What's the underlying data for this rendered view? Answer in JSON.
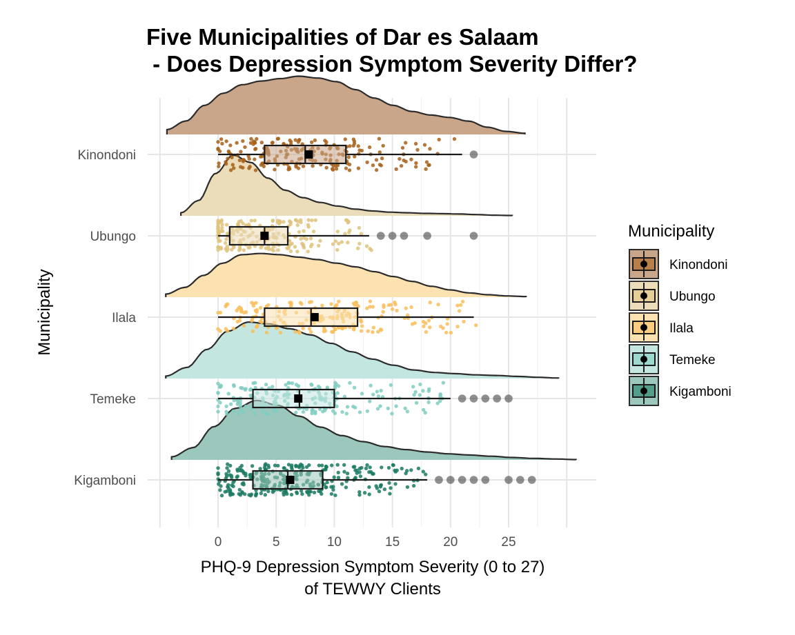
{
  "chart_data": {
    "type": "raincloud",
    "title_line1": "Five Municipalities of Dar es Salaam",
    "title_line2": " - Does Depression Symptom Severity Differ?",
    "xlabel_line1": "PHQ-9 Depression Symptom Severity (0 to 27)",
    "xlabel_line2": "of TEWWY Clients",
    "ylabel": "Municipality",
    "xlim": [
      -5,
      30
    ],
    "x_ticks": [
      0,
      5,
      10,
      15,
      20,
      25
    ],
    "x_tick_labels": [
      "0",
      "5",
      "10",
      "15",
      "20",
      "25"
    ],
    "grid": true,
    "legend": {
      "title": "Municipality",
      "position": "right"
    },
    "categories": [
      "Kinondoni",
      "Ubungo",
      "Ilala",
      "Temeke",
      "Kigamboni"
    ],
    "series": [
      {
        "name": "Kinondoni",
        "color": "#A6611A",
        "fill": "#C9A58A",
        "box": {
          "q1": 4,
          "median": 7.5,
          "q3": 11,
          "whisker_low": 0,
          "whisker_high": 21,
          "mean": 7.8
        },
        "outliers": [
          22
        ],
        "density_range": [
          -4.4,
          26.4
        ],
        "density": [
          0.08,
          0.22,
          0.48,
          0.68,
          0.82,
          0.88,
          0.92,
          0.96,
          0.93,
          0.87,
          0.74,
          0.6,
          0.48,
          0.38,
          0.32,
          0.28,
          0.22,
          0.12,
          0.05,
          0.02
        ],
        "n_points": 210
      },
      {
        "name": "Ubungo",
        "color": "#DFC27D",
        "fill": "#EBDDB9",
        "box": {
          "q1": 1,
          "median": 4,
          "q3": 6,
          "whisker_low": 0,
          "whisker_high": 13,
          "mean": 4
        },
        "outliers": [
          14,
          15,
          16,
          18,
          22
        ],
        "density_range": [
          -3.2,
          25.3
        ],
        "density": [
          0.05,
          0.25,
          0.7,
          1.0,
          0.88,
          0.62,
          0.42,
          0.3,
          0.22,
          0.16,
          0.11,
          0.08,
          0.06,
          0.05,
          0.04,
          0.035,
          0.03,
          0.02,
          0.01,
          0.005
        ],
        "n_points": 210
      },
      {
        "name": "Ilala",
        "color": "#F9BE5A",
        "fill": "#FCE1B1",
        "box": {
          "q1": 4,
          "median": 8,
          "q3": 12,
          "whisker_low": 0,
          "whisker_high": 22,
          "mean": 8.3
        },
        "outliers": [],
        "density_range": [
          -4.5,
          26.5
        ],
        "density": [
          0.05,
          0.16,
          0.36,
          0.56,
          0.7,
          0.72,
          0.7,
          0.66,
          0.62,
          0.56,
          0.5,
          0.42,
          0.34,
          0.26,
          0.18,
          0.12,
          0.07,
          0.04,
          0.02,
          0.01
        ],
        "n_points": 200
      },
      {
        "name": "Temeke",
        "color": "#80CDC1",
        "fill": "#C4E6E0",
        "box": {
          "q1": 3,
          "median": 7,
          "q3": 10,
          "whisker_low": 0,
          "whisker_high": 20,
          "mean": 6.9
        },
        "outliers": [
          21,
          22,
          23,
          24,
          25
        ],
        "density_range": [
          -4.5,
          29.3
        ],
        "density": [
          0.04,
          0.18,
          0.48,
          0.78,
          0.93,
          0.9,
          0.82,
          0.72,
          0.58,
          0.44,
          0.32,
          0.22,
          0.14,
          0.1,
          0.08,
          0.06,
          0.05,
          0.035,
          0.02,
          0.008
        ],
        "n_points": 210
      },
      {
        "name": "Kigamboni",
        "color": "#1B7A62",
        "fill": "#9CC7BC",
        "box": {
          "q1": 3,
          "median": 6,
          "q3": 9,
          "whisker_low": 0,
          "whisker_high": 18,
          "mean": 6.2
        },
        "outliers": [
          19,
          20,
          21,
          22,
          23,
          25,
          26,
          27
        ],
        "density_range": [
          -4,
          30.8
        ],
        "density": [
          0.05,
          0.2,
          0.55,
          0.85,
          0.98,
          0.9,
          0.72,
          0.54,
          0.4,
          0.3,
          0.22,
          0.17,
          0.13,
          0.1,
          0.08,
          0.06,
          0.04,
          0.025,
          0.015,
          0.005
        ],
        "n_points": 290
      }
    ]
  }
}
